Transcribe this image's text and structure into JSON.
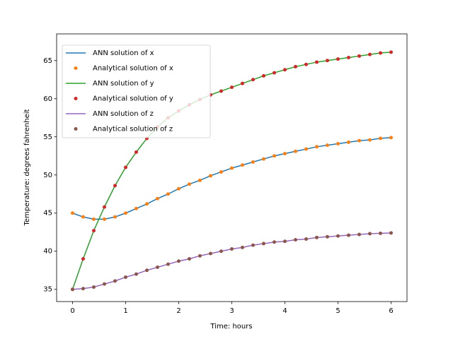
{
  "chart_data": {
    "type": "line",
    "xlabel": "Time: hours",
    "ylabel": "Temperature: degrees fahrenheit",
    "x": [
      0,
      0.2,
      0.4,
      0.6,
      0.8,
      1,
      1.2,
      1.4,
      1.6,
      1.8,
      2,
      2.2,
      2.4,
      2.6,
      2.8,
      3,
      3.2,
      3.4,
      3.6,
      3.8,
      4,
      4.2,
      4.4,
      4.6,
      4.8,
      5,
      5.2,
      5.4,
      5.6,
      5.8,
      6
    ],
    "xlim": [
      -0.3,
      6.3
    ],
    "xticks": [
      0,
      1,
      2,
      3,
      4,
      5,
      6
    ],
    "ylim": [
      33.4,
      68.5
    ],
    "yticks": [
      35,
      40,
      45,
      50,
      55,
      60,
      65
    ],
    "legend": "upper left",
    "series": [
      {
        "name": "ANN solution of x",
        "color": "#1f77b4",
        "style": "line",
        "values": [
          45.0,
          44.5,
          44.2,
          44.2,
          44.5,
          45.0,
          45.6,
          46.2,
          46.9,
          47.5,
          48.2,
          48.8,
          49.3,
          49.9,
          50.4,
          50.9,
          51.3,
          51.7,
          52.1,
          52.5,
          52.8,
          53.1,
          53.4,
          53.7,
          53.9,
          54.1,
          54.3,
          54.5,
          54.6,
          54.8,
          54.9
        ]
      },
      {
        "name": "Analytical solution of x",
        "color": "#ff7f0e",
        "style": "points",
        "values": [
          45.0,
          44.5,
          44.2,
          44.2,
          44.5,
          45.0,
          45.6,
          46.2,
          46.9,
          47.5,
          48.2,
          48.8,
          49.3,
          49.9,
          50.4,
          50.9,
          51.3,
          51.7,
          52.1,
          52.5,
          52.8,
          53.1,
          53.4,
          53.7,
          53.9,
          54.1,
          54.3,
          54.5,
          54.6,
          54.8,
          54.9
        ]
      },
      {
        "name": "ANN solution of y",
        "color": "#2ca02c",
        "style": "line",
        "values": [
          35.0,
          39.0,
          42.7,
          45.8,
          48.6,
          51.0,
          53.0,
          54.8,
          56.3,
          57.5,
          58.4,
          59.2,
          59.9,
          60.5,
          61.0,
          61.5,
          62.0,
          62.5,
          63.0,
          63.4,
          63.8,
          64.2,
          64.5,
          64.8,
          65.0,
          65.2,
          65.4,
          65.6,
          65.8,
          66.0,
          66.1
        ]
      },
      {
        "name": "Analytical solution of y",
        "color": "#d62728",
        "style": "points",
        "values": [
          35.0,
          39.0,
          42.7,
          45.8,
          48.6,
          51.0,
          53.0,
          54.8,
          56.3,
          57.5,
          58.4,
          59.2,
          59.9,
          60.5,
          61.0,
          61.5,
          62.0,
          62.5,
          63.0,
          63.4,
          63.8,
          64.2,
          64.5,
          64.8,
          65.0,
          65.2,
          65.4,
          65.6,
          65.8,
          66.0,
          66.1
        ]
      },
      {
        "name": "ANN solution of z",
        "color": "#9467bd",
        "style": "line",
        "values": [
          35.0,
          35.1,
          35.3,
          35.7,
          36.1,
          36.6,
          37.0,
          37.5,
          37.9,
          38.3,
          38.7,
          39.0,
          39.4,
          39.7,
          40.0,
          40.3,
          40.5,
          40.8,
          41.0,
          41.2,
          41.3,
          41.5,
          41.6,
          41.8,
          41.9,
          42.0,
          42.1,
          42.2,
          42.3,
          42.35,
          42.4
        ]
      },
      {
        "name": "Analytical solution of z",
        "color": "#8c564b",
        "style": "points",
        "values": [
          35.0,
          35.1,
          35.3,
          35.7,
          36.1,
          36.6,
          37.0,
          37.5,
          37.9,
          38.3,
          38.7,
          39.0,
          39.4,
          39.7,
          40.0,
          40.3,
          40.5,
          40.8,
          41.0,
          41.2,
          41.3,
          41.5,
          41.6,
          41.8,
          41.9,
          42.0,
          42.1,
          42.2,
          42.3,
          42.35,
          42.4
        ]
      }
    ]
  }
}
